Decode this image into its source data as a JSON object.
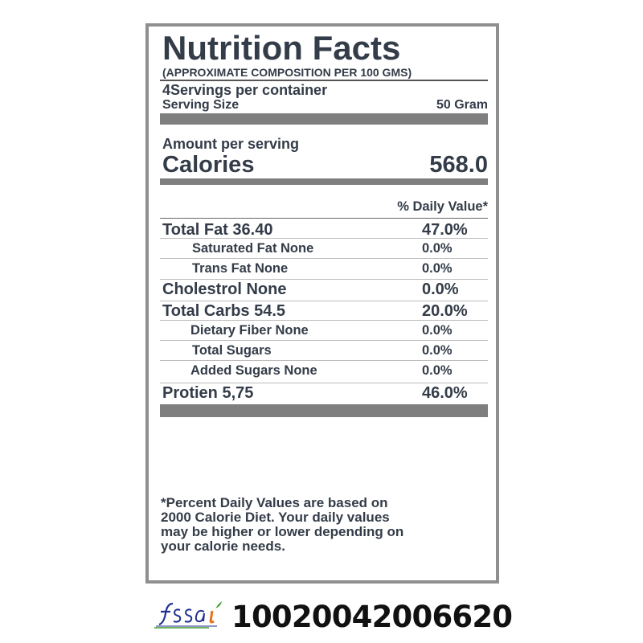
{
  "label": {
    "title": "Nutrition Facts",
    "subtitle": "(APPROXIMATE COMPOSITION PER 100 GMS)",
    "servings_per_container": "4Servings per container",
    "serving_size_label": "Serving Size",
    "serving_size_value": "50 Gram",
    "amount_per_serving": "Amount per serving",
    "calories_label": "Calories",
    "calories_value": "568.0",
    "daily_value_header": "% Daily Value*",
    "nutrients": [
      {
        "name": "Total Fat 36.40",
        "pct": "47.0%",
        "level": "main"
      },
      {
        "name": "Saturated Fat None",
        "pct": "0.0%",
        "level": "sub"
      },
      {
        "name": "Trans Fat None",
        "pct": "0.0%",
        "level": "sub"
      },
      {
        "name": "Cholestrol None",
        "pct": "0.0%",
        "level": "main"
      },
      {
        "name": "Total Carbs 54.5",
        "pct": "20.0%",
        "level": "main"
      },
      {
        "name": "Dietary Fiber None",
        "pct": "0.0%",
        "level": "sub"
      },
      {
        "name": "Total Sugars",
        "pct": "0.0%",
        "level": "sub"
      },
      {
        "name": "Added Sugars None",
        "pct": "0.0%",
        "level": "sub"
      },
      {
        "name": "Protien 5,75",
        "pct": "46.0%",
        "level": "main"
      }
    ],
    "footnote": [
      "*Percent Daily Values are based on",
      "2000 Calorie Diet. Your daily values",
      "may be higher or lower depending on",
      "your calorie needs."
    ]
  },
  "fssai": {
    "logo_text": "fssai",
    "license_number": "10020042006620",
    "colors": {
      "blue": "#1f2f8f",
      "orange": "#e8731a",
      "green": "#3a9a2a"
    }
  }
}
